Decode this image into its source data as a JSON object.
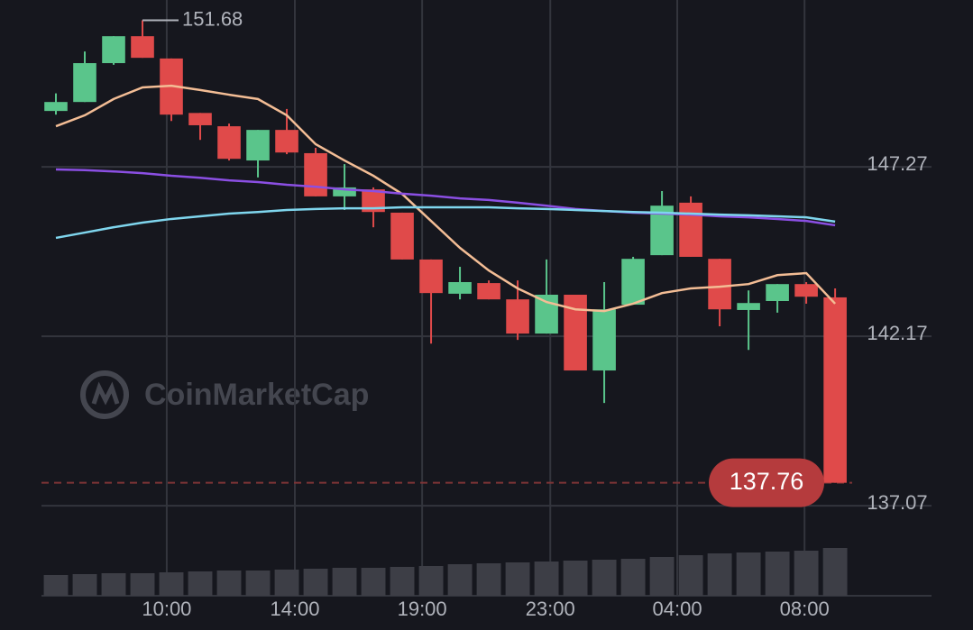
{
  "chart_data": {
    "type": "candlestick",
    "watermark": "CoinMarketCap",
    "x": [
      0,
      1,
      2,
      3,
      4,
      5,
      6,
      7,
      8,
      9,
      10,
      11,
      12,
      13,
      14,
      15,
      16,
      17,
      18,
      19,
      20,
      21,
      22,
      23,
      24,
      25,
      26,
      27
    ],
    "open": [
      148.95,
      149.22,
      150.39,
      151.2,
      150.53,
      148.89,
      148.49,
      147.46,
      148.38,
      147.68,
      146.38,
      146.59,
      145.89,
      144.48,
      143.45,
      143.77,
      143.28,
      142.25,
      143.42,
      141.14,
      143.12,
      144.61,
      146.19,
      144.5,
      142.96,
      143.23,
      143.74,
      143.34
    ],
    "high": [
      149.48,
      150.74,
      151.2,
      151.68,
      150.53,
      148.89,
      148.57,
      148.38,
      149.01,
      147.84,
      147.35,
      146.65,
      145.89,
      144.48,
      144.26,
      143.85,
      143.85,
      144.48,
      143.42,
      143.8,
      144.56,
      146.54,
      146.38,
      144.5,
      143.55,
      143.74,
      143.8,
      143.61
    ],
    "low": [
      148.84,
      149.22,
      150.34,
      150.55,
      148.65,
      148.08,
      147.46,
      146.95,
      147.65,
      146.38,
      145.97,
      145.45,
      144.48,
      141.95,
      143.28,
      143.28,
      142.06,
      142.25,
      141.14,
      140.16,
      143.12,
      144.61,
      144.56,
      142.47,
      141.76,
      142.88,
      143.15,
      137.76
    ],
    "close": [
      149.22,
      150.39,
      151.2,
      150.55,
      148.84,
      148.52,
      147.51,
      148.38,
      147.7,
      146.38,
      146.65,
      145.91,
      144.48,
      143.47,
      143.8,
      143.28,
      142.25,
      143.42,
      141.14,
      142.98,
      144.5,
      146.1,
      144.56,
      142.98,
      143.17,
      143.74,
      143.36,
      137.76
    ],
    "up_color": "#5ac58b",
    "down_color": "#e04a4a",
    "lines": [
      {
        "color": "#f3bd95",
        "values": [
          148.49,
          148.82,
          149.31,
          149.66,
          149.71,
          149.58,
          149.44,
          149.31,
          148.82,
          147.95,
          147.46,
          147.0,
          146.45,
          145.64,
          144.83,
          144.15,
          143.61,
          143.2,
          142.98,
          142.93,
          143.15,
          143.47,
          143.61,
          143.66,
          143.74,
          144.01,
          144.07,
          143.15
        ]
      },
      {
        "color": "#8b4fe3",
        "values": [
          147.19,
          147.17,
          147.13,
          147.08,
          147.0,
          146.94,
          146.86,
          146.81,
          146.73,
          146.67,
          146.59,
          146.54,
          146.46,
          146.4,
          146.32,
          146.27,
          146.19,
          146.1,
          146.0,
          145.94,
          145.89,
          145.86,
          145.83,
          145.78,
          145.75,
          145.7,
          145.64,
          145.51
        ]
      },
      {
        "color": "#7fd6ee",
        "values": [
          145.13,
          145.29,
          145.45,
          145.59,
          145.7,
          145.78,
          145.86,
          145.91,
          145.97,
          146.0,
          146.02,
          146.02,
          146.05,
          146.05,
          146.05,
          146.05,
          146.02,
          146.0,
          145.97,
          145.94,
          145.91,
          145.89,
          145.86,
          145.83,
          145.81,
          145.78,
          145.75,
          145.62
        ]
      }
    ],
    "volume": [
      23,
      24,
      25,
      25,
      26,
      27,
      28,
      28,
      29,
      30,
      31,
      31,
      32,
      33,
      35,
      36,
      37,
      38,
      39,
      40,
      41,
      43,
      45,
      47,
      48,
      49,
      50,
      53
    ],
    "volume_color": "#3d3e46",
    "ylim": [
      134.36,
      152.29
    ],
    "yticks": [
      147.27,
      142.17,
      137.07
    ],
    "xlim": [
      -0.5,
      30.34
    ],
    "xticks": [
      {
        "value": 3.84,
        "label": "10:00"
      },
      {
        "value": 8.28,
        "label": "14:00"
      },
      {
        "value": 12.69,
        "label": "19:00"
      },
      {
        "value": 17.13,
        "label": "23:00"
      },
      {
        "value": 21.53,
        "label": "04:00"
      },
      {
        "value": 25.94,
        "label": "08:00"
      }
    ],
    "grid": true,
    "high_label": 151.68,
    "last_price": 137.76,
    "last_price_color": "#b53b3d"
  }
}
